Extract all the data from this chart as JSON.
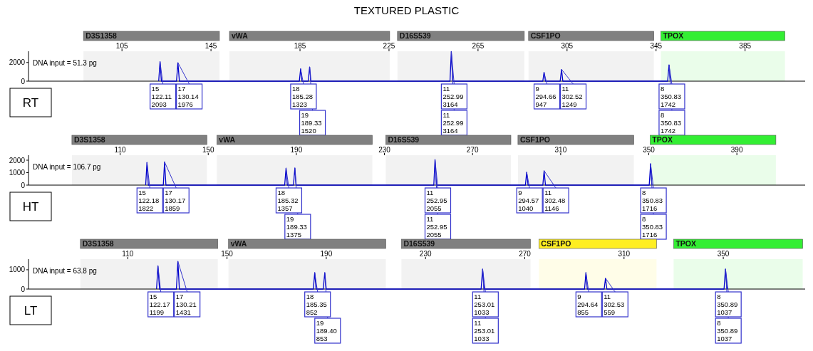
{
  "chart_data": [
    {
      "type": "line",
      "title": "TEXTURED PLASTIC",
      "xlim": [
        63,
        412
      ],
      "xticks": [
        105,
        145,
        185,
        225,
        265,
        305,
        345,
        385
      ],
      "ylim": [
        0,
        3200
      ],
      "yticks": [
        0,
        2000
      ],
      "grid": false,
      "marker": "none",
      "line_style": "solid",
      "x": [
        121.5,
        122.11,
        122.7,
        129.5,
        130.14,
        130.8,
        184.7,
        185.28,
        185.9,
        188.7,
        189.33,
        189.9,
        252.4,
        252.99,
        253.6,
        294.1,
        294.66,
        295.3,
        301.9,
        302.52,
        303.1,
        350.2,
        350.83,
        351.4
      ],
      "series": [
        {
          "color": "#0000cc",
          "values": [
            0,
            2093,
            0,
            0,
            1976,
            0,
            0,
            1323,
            0,
            0,
            1520,
            0,
            0,
            3164,
            0,
            0,
            947,
            0,
            0,
            1249,
            0,
            0,
            1742,
            0
          ]
        }
      ],
      "bands": [
        {
          "axis": "x",
          "from": 87.7,
          "to": 148.8,
          "label": "D3S1358",
          "color": "#808080"
        },
        {
          "axis": "x",
          "from": 153.3,
          "to": 225.3,
          "label": "vWA",
          "color": "#808080"
        },
        {
          "axis": "x",
          "from": 228.8,
          "to": 285.8,
          "label": "D16S539",
          "color": "#808080"
        },
        {
          "axis": "x",
          "from": 287.7,
          "to": 344,
          "label": "CSF1PO",
          "color": "#808080"
        },
        {
          "axis": "x",
          "from": 347.2,
          "to": 402.9,
          "label": "TPOX",
          "color": "#33ee33"
        }
      ],
      "annotations": [
        "DNA input = 51.3 pg",
        "RT",
        {
          "text": "15\n122.11\n2093",
          "x": 122.11,
          "y": 2093
        },
        {
          "text": "17\n130.14\n1976",
          "x": 130.14,
          "y": 1976
        },
        {
          "text": "18\n185.28\n1323",
          "x": 185.28,
          "y": 1323
        },
        {
          "text": "19\n189.33\n1520",
          "x": 189.33,
          "y": 1520
        },
        {
          "text": "11\n252.99\n3164",
          "x": 252.99,
          "y": 3164
        },
        {
          "text": "11\n252.99\n3164",
          "x": 252.99,
          "y": 3164
        },
        {
          "text": "9\n294.66\n947",
          "x": 294.66,
          "y": 947
        },
        {
          "text": "11\n302.52\n1249",
          "x": 302.52,
          "y": 1249
        },
        {
          "text": "8\n350.83\n1742",
          "x": 350.83,
          "y": 1742
        },
        {
          "text": "8\n350.83\n1742",
          "x": 350.83,
          "y": 1742
        }
      ]
    },
    {
      "type": "line",
      "xlim": [
        68.4,
        421
      ],
      "xticks": [
        110,
        150,
        190,
        230,
        270,
        310,
        350,
        390
      ],
      "ylim": [
        0,
        2400
      ],
      "yticks": [
        0,
        1000,
        2000
      ],
      "grid": false,
      "marker": "none",
      "line_style": "solid",
      "x": [
        121.6,
        122.18,
        122.8,
        129.6,
        130.17,
        130.8,
        184.7,
        185.32,
        185.9,
        188.7,
        189.33,
        189.9,
        252.4,
        252.95,
        253.6,
        294.0,
        294.57,
        295.2,
        301.9,
        302.48,
        303.1,
        350.2,
        350.83,
        351.4
      ],
      "series": [
        {
          "color": "#0000cc",
          "values": [
            0,
            1822,
            0,
            0,
            1859,
            0,
            0,
            1357,
            0,
            0,
            1375,
            0,
            0,
            2055,
            0,
            0,
            1040,
            0,
            0,
            1146,
            0,
            0,
            1716,
            0
          ]
        }
      ],
      "bands": [
        {
          "axis": "x",
          "from": 88.1,
          "to": 149.4,
          "label": "D3S1358",
          "color": "#808080"
        },
        {
          "axis": "x",
          "from": 153.9,
          "to": 224.5,
          "label": "vWA",
          "color": "#808080"
        },
        {
          "axis": "x",
          "from": 230.6,
          "to": 287.4,
          "label": "D16S539",
          "color": "#808080"
        },
        {
          "axis": "x",
          "from": 290.6,
          "to": 343.2,
          "label": "CSF1PO",
          "color": "#808080"
        },
        {
          "axis": "x",
          "from": 350.6,
          "to": 407.7,
          "label": "TPOX",
          "color": "#33ee33"
        }
      ],
      "annotations": [
        "DNA input = 106.7 pg",
        "HT",
        {
          "text": "15\n122.18\n1822",
          "x": 122.18,
          "y": 1822
        },
        {
          "text": "17\n130.17\n1859",
          "x": 130.17,
          "y": 1859
        },
        {
          "text": "18\n185.32\n1357",
          "x": 185.32,
          "y": 1357
        },
        {
          "text": "19\n189.33\n1375",
          "x": 189.33,
          "y": 1375
        },
        {
          "text": "11\n252.95\n2055",
          "x": 252.95,
          "y": 2055
        },
        {
          "text": "11\n252.95\n2055",
          "x": 252.95,
          "y": 2055
        },
        {
          "text": "9\n294.57\n1040",
          "x": 294.57,
          "y": 1040
        },
        {
          "text": "11\n302.48\n1146",
          "x": 302.48,
          "y": 1146
        },
        {
          "text": "8\n350.83\n1716",
          "x": 350.83,
          "y": 1716
        },
        {
          "text": "8\n350.83\n1716",
          "x": 350.83,
          "y": 1716
        }
      ]
    },
    {
      "type": "line",
      "xlim": [
        70,
        383
      ],
      "xticks": [
        110,
        150,
        190,
        230,
        270,
        310,
        350
      ],
      "ylim": [
        0,
        1550
      ],
      "yticks": [
        0,
        1000
      ],
      "grid": false,
      "marker": "none",
      "line_style": "solid",
      "x": [
        121.6,
        122.17,
        122.8,
        129.6,
        130.21,
        130.8,
        184.8,
        185.35,
        185.9,
        188.8,
        189.4,
        190.0,
        252.4,
        253.01,
        253.6,
        294.1,
        294.64,
        295.2,
        302.0,
        302.53,
        303.1,
        350.3,
        350.89,
        351.5
      ],
      "series": [
        {
          "color": "#0000cc",
          "values": [
            0,
            1199,
            0,
            0,
            1431,
            0,
            0,
            852,
            0,
            0,
            853,
            0,
            0,
            1033,
            0,
            0,
            855,
            0,
            0,
            559,
            0,
            0,
            1037,
            0
          ]
        }
      ],
      "bands": [
        {
          "axis": "x",
          "from": 90.9,
          "to": 146.3,
          "label": "D3S1358",
          "color": "#808080"
        },
        {
          "axis": "x",
          "from": 150.6,
          "to": 214,
          "label": "vWA",
          "color": "#808080"
        },
        {
          "axis": "x",
          "from": 220.3,
          "to": 272.3,
          "label": "D16S539",
          "color": "#808080"
        },
        {
          "axis": "x",
          "from": 275.7,
          "to": 323.1,
          "label": "CSF1PO",
          "color": "#ffee22"
        },
        {
          "axis": "x",
          "from": 330,
          "to": 382,
          "label": "TPOX",
          "color": "#33ee33"
        }
      ],
      "annotations": [
        "DNA input = 63.8 pg",
        "LT",
        {
          "text": "15\n122.17\n1199",
          "x": 122.17,
          "y": 1199
        },
        {
          "text": "17\n130.21\n1431",
          "x": 130.21,
          "y": 1431
        },
        {
          "text": "18\n185.35\n852",
          "x": 185.35,
          "y": 852
        },
        {
          "text": "19\n189.40\n853",
          "x": 189.4,
          "y": 853
        },
        {
          "text": "11\n253.01\n1033",
          "x": 253.01,
          "y": 1033
        },
        {
          "text": "11\n253.01\n1033",
          "x": 253.01,
          "y": 1033
        },
        {
          "text": "9\n294.64\n855",
          "x": 294.64,
          "y": 855
        },
        {
          "text": "11\n302.53\n559",
          "x": 302.53,
          "y": 559
        },
        {
          "text": "8\n350.89\n1037",
          "x": 350.89,
          "y": 1037
        },
        {
          "text": "8\n350.89\n1037",
          "x": 350.89,
          "y": 1037
        }
      ]
    }
  ]
}
